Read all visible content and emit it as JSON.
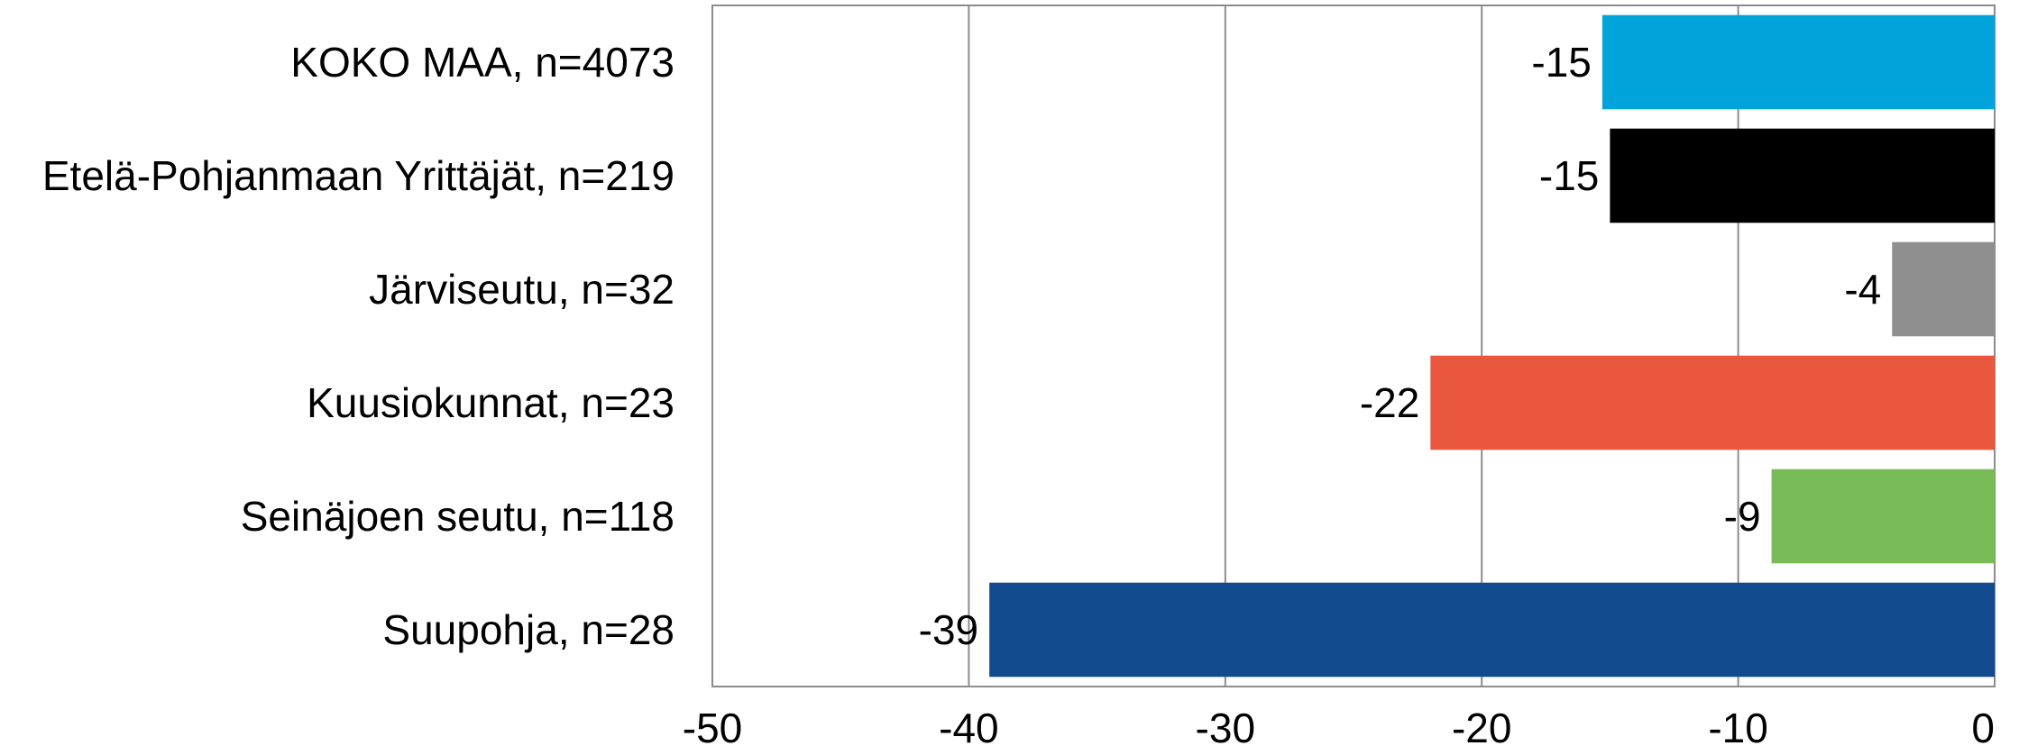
{
  "chart_data": {
    "type": "bar",
    "orientation": "horizontal",
    "categories": [
      "KOKO MAA, n=4073",
      "Etelä-Pohjanmaan Yrittäjät, n=219",
      "Järviseutu, n=32",
      "Kuusiokunnat, n=23",
      "Seinäjoen seutu, n=118",
      "Suupohja, n=28"
    ],
    "values": [
      -15.3,
      -15.0,
      -4.0,
      -22.0,
      -8.7,
      -39.2
    ],
    "value_labels": [
      "-15",
      "-15",
      "-4",
      "-22",
      "-9",
      "-39"
    ],
    "colors": [
      "#00A3DA",
      "#000000",
      "#8F8F8F",
      "#E8573E",
      "#79BC57",
      "#124A8E"
    ],
    "xlim": [
      -50,
      0
    ],
    "xticks": [
      -50,
      -40,
      -30,
      -20,
      -10,
      0
    ],
    "xtick_labels": [
      "-50",
      "-40",
      "-30",
      "-20",
      "-10",
      "0"
    ],
    "grid": true,
    "title": "",
    "xlabel": "",
    "ylabel": ""
  }
}
